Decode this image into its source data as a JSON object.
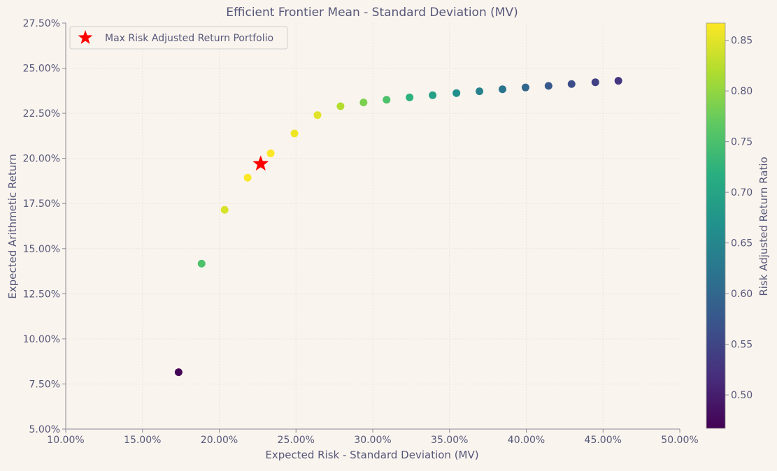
{
  "chart_data": {
    "type": "scatter",
    "title": "Efficient Frontier Mean - Standard Deviation (MV)",
    "xlabel": "Expected Risk - Standard Deviation (MV)",
    "ylabel": "Expected Arithmetic Return",
    "xlim": [
      0.1,
      0.5
    ],
    "ylim": [
      0.05,
      0.275
    ],
    "x_ticks": [
      "10.00%",
      "15.00%",
      "20.00%",
      "25.00%",
      "30.00%",
      "35.00%",
      "40.00%",
      "45.00%",
      "50.00%"
    ],
    "x_tick_values": [
      0.1,
      0.15,
      0.2,
      0.25,
      0.3,
      0.35,
      0.4,
      0.45,
      0.5
    ],
    "y_ticks": [
      "5.00%",
      "7.50%",
      "10.00%",
      "12.50%",
      "15.00%",
      "17.50%",
      "20.00%",
      "22.50%",
      "25.00%",
      "27.50%"
    ],
    "y_tick_values": [
      0.05,
      0.075,
      0.1,
      0.125,
      0.15,
      0.175,
      0.2,
      0.225,
      0.25,
      0.275
    ],
    "grid": true,
    "colormap": "viridis",
    "colorbar": {
      "label": "Risk Adjusted Return Ratio",
      "range": [
        0.467,
        0.867
      ],
      "ticks": [
        "0.50",
        "0.55",
        "0.60",
        "0.65",
        "0.70",
        "0.75",
        "0.80",
        "0.85"
      ],
      "tick_values": [
        0.5,
        0.55,
        0.6,
        0.65,
        0.7,
        0.75,
        0.8,
        0.85
      ]
    },
    "points": [
      {
        "x": 0.1735,
        "y": 0.0815,
        "c": 0.47
      },
      {
        "x": 0.1885,
        "y": 0.1417,
        "c": 0.752
      },
      {
        "x": 0.2035,
        "y": 0.1715,
        "c": 0.843
      },
      {
        "x": 0.2185,
        "y": 0.1893,
        "c": 0.865
      },
      {
        "x": 0.2335,
        "y": 0.2028,
        "c": 0.868
      },
      {
        "x": 0.249,
        "y": 0.2138,
        "c": 0.858
      },
      {
        "x": 0.264,
        "y": 0.224,
        "c": 0.849
      },
      {
        "x": 0.279,
        "y": 0.2289,
        "c": 0.82
      },
      {
        "x": 0.294,
        "y": 0.231,
        "c": 0.786
      },
      {
        "x": 0.309,
        "y": 0.2325,
        "c": 0.752
      },
      {
        "x": 0.324,
        "y": 0.2338,
        "c": 0.722
      },
      {
        "x": 0.339,
        "y": 0.235,
        "c": 0.693
      },
      {
        "x": 0.3545,
        "y": 0.2362,
        "c": 0.666
      },
      {
        "x": 0.3695,
        "y": 0.2372,
        "c": 0.642
      },
      {
        "x": 0.3845,
        "y": 0.2383,
        "c": 0.62
      },
      {
        "x": 0.3995,
        "y": 0.2393,
        "c": 0.599
      },
      {
        "x": 0.4145,
        "y": 0.2402,
        "c": 0.58
      },
      {
        "x": 0.4295,
        "y": 0.2412,
        "c": 0.562
      },
      {
        "x": 0.445,
        "y": 0.2422,
        "c": 0.544
      },
      {
        "x": 0.46,
        "y": 0.243,
        "c": 0.528
      }
    ],
    "highlight": {
      "name": "Max Risk Adjusted Return Portfolio",
      "x": 0.227,
      "y": 0.197,
      "color": "#ff0000"
    },
    "legend": {
      "label": "Max Risk Adjusted Return Portfolio",
      "position": "top-left"
    }
  }
}
